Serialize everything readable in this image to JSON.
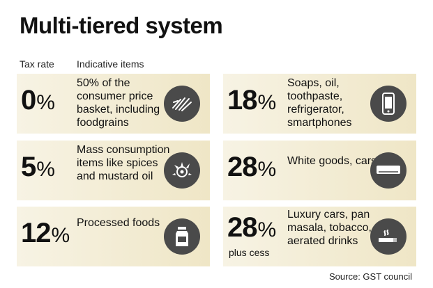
{
  "title": "Multi-tiered system",
  "headers": {
    "rate": "Tax rate",
    "items": "Indicative items"
  },
  "cards": [
    {
      "rate": "0",
      "unit": "%",
      "sub": "",
      "items": "50% of the consumer price basket, including foodgrains",
      "icon": "grain-icon"
    },
    {
      "rate": "5",
      "unit": "%",
      "sub": "",
      "items": "Mass consumption items like spices and mustard oil",
      "icon": "spices-icon"
    },
    {
      "rate": "12",
      "unit": "%",
      "sub": "",
      "items": "Processed foods",
      "icon": "milk-carton-icon"
    },
    {
      "rate": "18",
      "unit": "%",
      "sub": "",
      "items": "Soaps, oil, toothpaste, refrigerator, smartphones",
      "icon": "smartphone-icon"
    },
    {
      "rate": "28",
      "unit": "%",
      "sub": "",
      "items": "White goods, cars",
      "icon": "air-conditioner-icon"
    },
    {
      "rate": "28",
      "unit": "%",
      "sub": "plus cess",
      "items": "Luxury cars, pan masala, tobacco, aerated drinks",
      "icon": "cigarette-icon"
    }
  ],
  "source": "Source: GST council"
}
